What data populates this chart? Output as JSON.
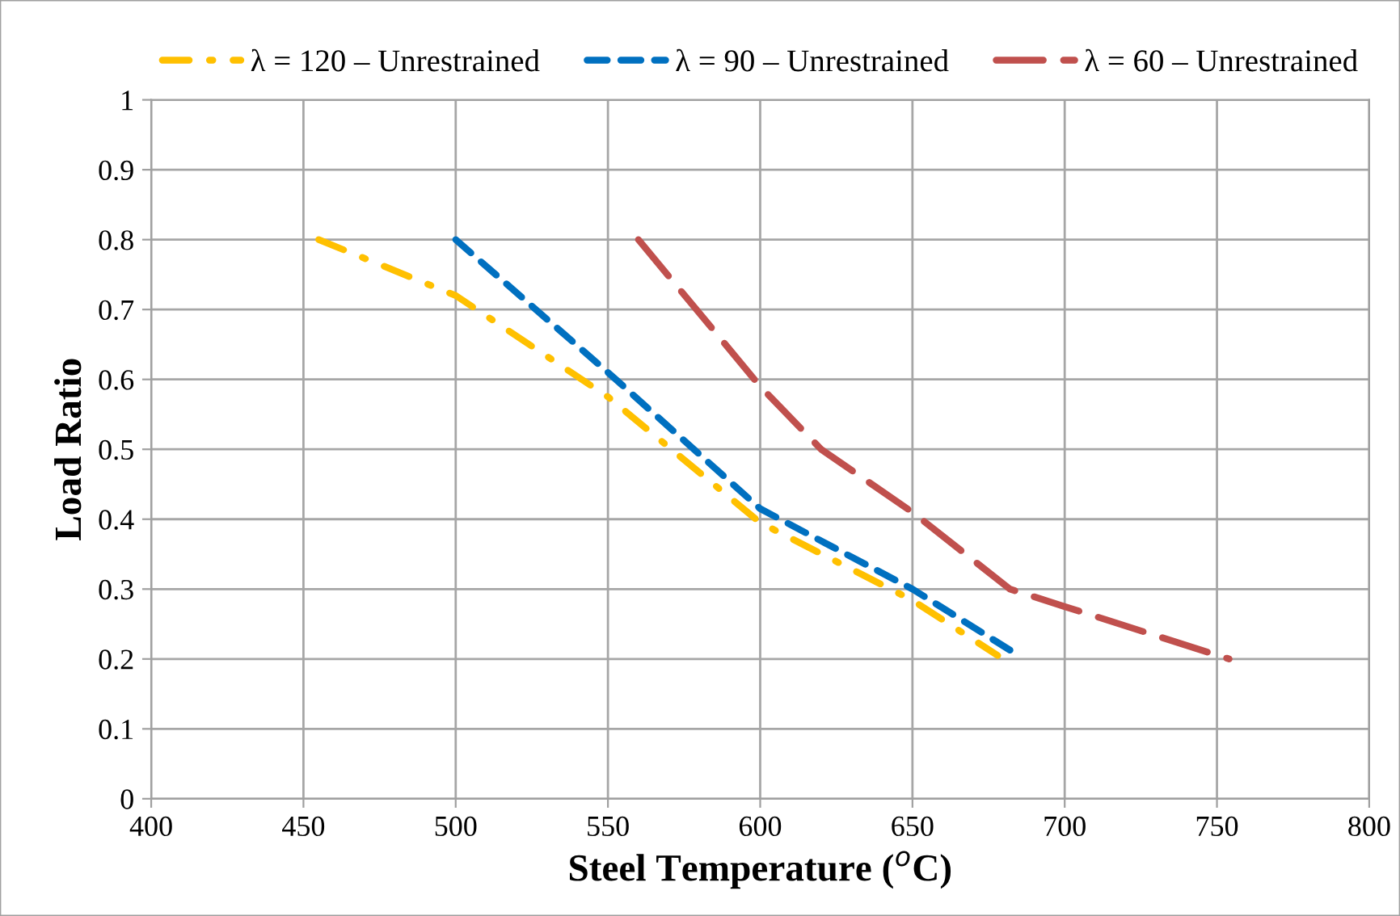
{
  "chart_data": {
    "type": "line",
    "xlabel": "Steel Temperature ($^{o}$C)",
    "ylabel": "Load Ratio",
    "xlim": [
      400,
      800
    ],
    "xticks": [
      400,
      450,
      500,
      550,
      600,
      650,
      700,
      750,
      800
    ],
    "ylim": [
      0,
      1
    ],
    "yticks": [
      0,
      0.1,
      0.2,
      0.3,
      0.4,
      0.5,
      0.6,
      0.7,
      0.8,
      0.9,
      1
    ],
    "grid": true,
    "legend": "top",
    "marker": "none",
    "series": [
      {
        "name": "λ = 120 – Unrestrained",
        "color": "#ffc000",
        "line_style": "dashdot",
        "x": [
          455,
          500,
          550,
          600,
          650,
          678
        ],
        "values": [
          0.8,
          0.72,
          0.575,
          0.395,
          0.284,
          0.205
        ]
      },
      {
        "name": "λ = 90 – Unrestrained",
        "color": "#0070c0",
        "line_style": "dashed",
        "x": [
          500,
          550,
          600,
          650,
          683
        ],
        "values": [
          0.8,
          0.61,
          0.415,
          0.3,
          0.21
        ]
      },
      {
        "name": "λ = 60 – Unrestrained",
        "color": "#c0504d",
        "line_style": "longdash",
        "x": [
          560,
          600,
          620,
          650,
          682,
          700,
          754
        ],
        "values": [
          0.8,
          0.59,
          0.5,
          0.41,
          0.3,
          0.275,
          0.2
        ]
      }
    ]
  }
}
